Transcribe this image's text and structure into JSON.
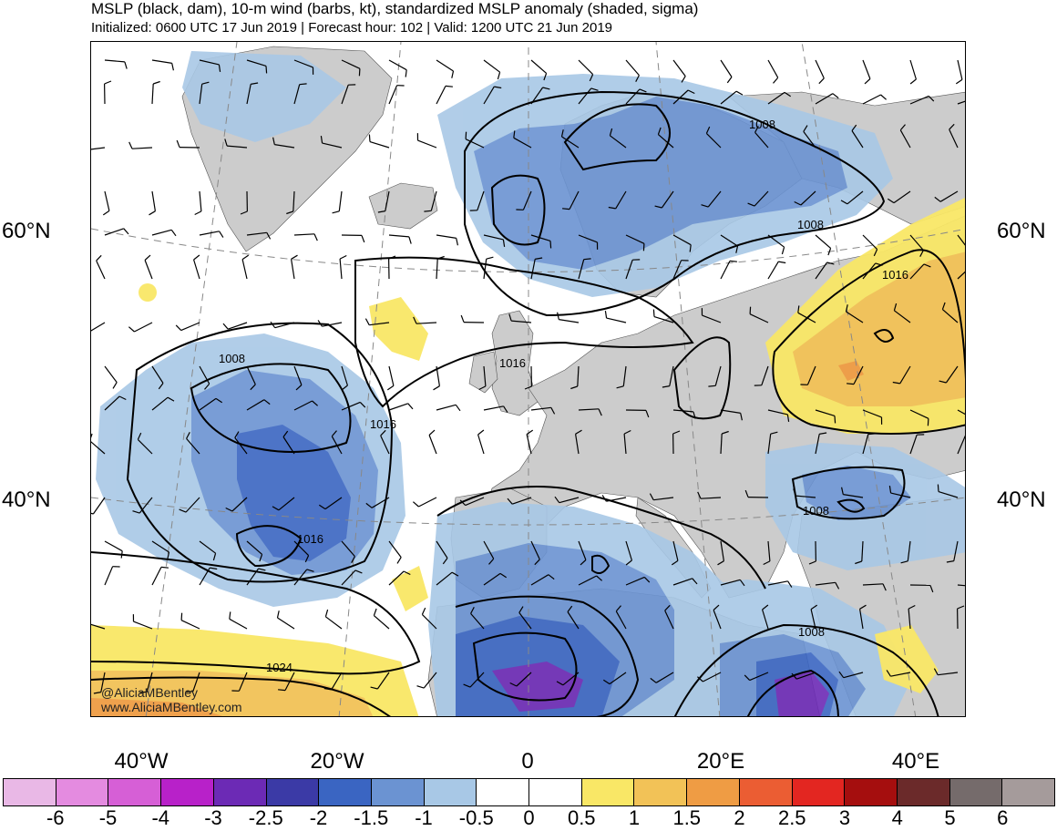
{
  "header": {
    "title": "MSLP (black, dam), 10-m wind (barbs, kt), standardized MSLP anomaly (shaded, sigma)",
    "subtitle": "Initialized: 0600 UTC 17 Jun 2019 | Forecast hour: 102 | Valid: 1200 UTC 21 Jun 2019"
  },
  "lat_labels": {
    "lat60_left": "60°N",
    "lat60_right": "60°N",
    "lat40_left": "40°N",
    "lat40_right": "40°N"
  },
  "lon_labels": {
    "lon40w": "40°W",
    "lon20w": "20°W",
    "lon0": "0",
    "lon20e": "20°E",
    "lon40e": "40°E"
  },
  "contour_labels": {
    "c1008_scand": "1008",
    "c1008_russia": "1008",
    "c1016_russia": "1016",
    "c1008_atl": "1008",
    "c1016_atl": "1016",
    "c1016_uk": "1016",
    "c1016_azores": "1016",
    "c1008_balkan": "1008",
    "c1008_east_med": "1008",
    "c1024": "1024"
  },
  "credit": {
    "handle": "@AliciaMBentley",
    "url": "www.AliciaMBentley.com"
  },
  "colorbar": {
    "colors": [
      "#e9b8e6",
      "#e48be0",
      "#d65fd6",
      "#b821c9",
      "#6c2ab5",
      "#3b3aa6",
      "#3a65c2",
      "#6b93d2",
      "#a8c8e6",
      "#ffffff",
      "#ffffff",
      "#f9e766",
      "#f2c257",
      "#ef9c44",
      "#eb5d33",
      "#e32621",
      "#a50e0e",
      "#6b2a2a",
      "#756b6b",
      "#a59b9b"
    ],
    "labels": [
      "-6",
      "-5",
      "-4",
      "-3",
      "-2.5",
      "-2",
      "-1.5",
      "-1",
      "-0.5",
      "0",
      "0.5",
      "1",
      "1.5",
      "2",
      "2.5",
      "3",
      "4",
      "5",
      "6"
    ]
  },
  "map_colors": {
    "land": "#cccccc",
    "anom_neg05": "#a8c8e6",
    "anom_neg1": "#6b93d2",
    "anom_neg15": "#3a65c2",
    "anom_neg2": "#3b3aa6",
    "anom_neg25": "#6c2ab5",
    "anom_pos05": "#f9e766",
    "anom_pos1": "#f2c257",
    "anom_pos15": "#ef9c44"
  }
}
